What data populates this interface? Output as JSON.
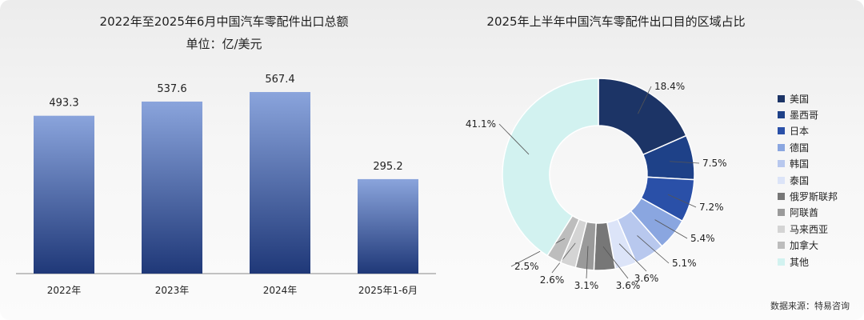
{
  "chart_data": [
    {
      "type": "bar",
      "title": "2022年至2025年6月中国汽车零配件出口总额",
      "subtitle": "单位：亿/美元",
      "categories": [
        "2022年",
        "2023年",
        "2024年",
        "2025年1-6月"
      ],
      "values": [
        493.3,
        537.6,
        567.4,
        295.2
      ],
      "value_labels": [
        "493.3",
        "537.6",
        "567.4",
        "295.2"
      ],
      "ylim": [
        0,
        600
      ],
      "grid": false,
      "bar_gradient": [
        "#8aa4dc",
        "#1f3878"
      ]
    },
    {
      "type": "pie",
      "variant": "donut",
      "title": "2025年上半年中国汽车零配件出口目的区域占比",
      "legend_position": "right",
      "labels": [
        "美国",
        "墨西哥",
        "日本",
        "德国",
        "韩国",
        "泰国",
        "俄罗斯联邦",
        "阿联酋",
        "马来西亚",
        "加拿大",
        "其他"
      ],
      "values": [
        18.4,
        7.5,
        7.2,
        5.4,
        5.1,
        3.6,
        3.6,
        3.1,
        2.6,
        2.5,
        41.1
      ],
      "value_labels": [
        "18.4%",
        "7.5%",
        "7.2%",
        "5.4%",
        "5.1%",
        "3.6%",
        "3.6%",
        "3.1%",
        "2.6%",
        "2.5%",
        "41.1%"
      ],
      "colors": [
        "#1c3466",
        "#1e4188",
        "#2a50a8",
        "#8aa6e0",
        "#b8c8ee",
        "#dce4f8",
        "#777777",
        "#9a9a9a",
        "#d4d4d4",
        "#bdbdbd",
        "#d2f2f0"
      ]
    }
  ],
  "footer": {
    "source": "数据来源：特易咨询"
  }
}
